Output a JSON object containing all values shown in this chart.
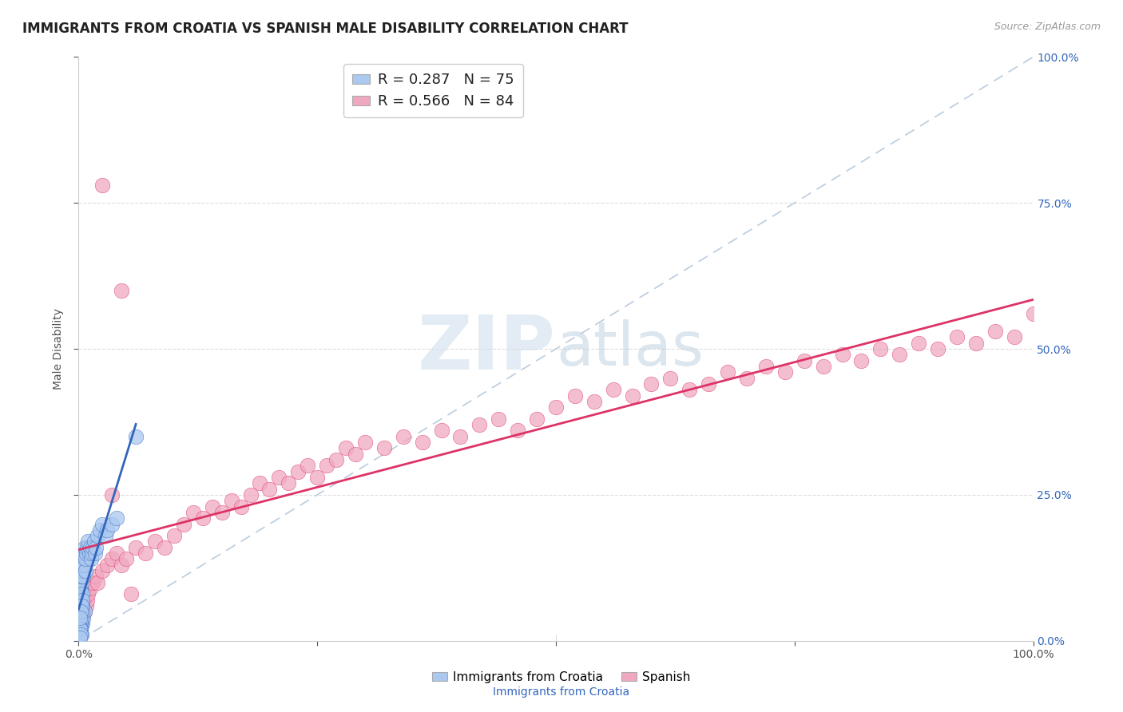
{
  "title": "IMMIGRANTS FROM CROATIA VS SPANISH MALE DISABILITY CORRELATION CHART",
  "source_text": "Source: ZipAtlas.com",
  "xlabel": "Immigrants from Croatia",
  "ylabel": "Male Disability",
  "xlim": [
    0.0,
    1.0
  ],
  "ylim": [
    0.0,
    1.0
  ],
  "legend_r1": "R = 0.287",
  "legend_n1": "N = 75",
  "legend_r2": "R = 0.566",
  "legend_n2": "N = 84",
  "color_croatia": "#aac8f0",
  "color_spanish": "#f0a8c0",
  "color_line_croatia": "#3366bb",
  "color_line_spanish": "#dd3366",
  "color_diagonal": "#bbccdd",
  "watermark_zip": "ZIP",
  "watermark_atlas": "atlas",
  "watermark_color_zip": "#d5e5f5",
  "watermark_color_atlas": "#c8d8e8",
  "background_color": "#ffffff",
  "croatia_x": [
    0.001,
    0.002,
    0.001,
    0.002,
    0.001,
    0.003,
    0.002,
    0.001,
    0.004,
    0.003,
    0.002,
    0.001,
    0.001,
    0.002,
    0.003,
    0.001,
    0.002,
    0.001,
    0.002,
    0.001,
    0.003,
    0.002,
    0.001,
    0.002,
    0.003,
    0.004,
    0.003,
    0.002,
    0.003,
    0.004,
    0.005,
    0.004,
    0.005,
    0.006,
    0.007,
    0.005,
    0.006,
    0.007,
    0.008,
    0.009,
    0.01,
    0.011,
    0.012,
    0.013,
    0.014,
    0.015,
    0.016,
    0.017,
    0.018,
    0.02,
    0.022,
    0.025,
    0.028,
    0.03,
    0.035,
    0.04,
    0.003,
    0.004,
    0.005,
    0.006,
    0.002,
    0.003,
    0.004,
    0.002,
    0.001,
    0.002,
    0.003,
    0.001,
    0.002,
    0.001,
    0.06,
    0.004,
    0.003,
    0.002,
    0.001
  ],
  "croatia_y": [
    0.02,
    0.03,
    0.04,
    0.05,
    0.01,
    0.03,
    0.02,
    0.06,
    0.03,
    0.04,
    0.05,
    0.03,
    0.02,
    0.04,
    0.05,
    0.07,
    0.06,
    0.08,
    0.07,
    0.09,
    0.08,
    0.07,
    0.1,
    0.09,
    0.1,
    0.08,
    0.11,
    0.12,
    0.13,
    0.12,
    0.11,
    0.13,
    0.14,
    0.13,
    0.12,
    0.15,
    0.16,
    0.14,
    0.15,
    0.16,
    0.17,
    0.15,
    0.16,
    0.14,
    0.15,
    0.16,
    0.17,
    0.15,
    0.16,
    0.18,
    0.19,
    0.2,
    0.18,
    0.19,
    0.2,
    0.21,
    0.05,
    0.06,
    0.04,
    0.05,
    0.03,
    0.04,
    0.05,
    0.02,
    0.01,
    0.02,
    0.01,
    0.02,
    0.01,
    0.005,
    0.35,
    0.07,
    0.06,
    0.05,
    0.04
  ],
  "spanish_x": [
    0.001,
    0.002,
    0.003,
    0.004,
    0.005,
    0.006,
    0.007,
    0.008,
    0.009,
    0.01,
    0.012,
    0.015,
    0.018,
    0.02,
    0.025,
    0.03,
    0.035,
    0.04,
    0.045,
    0.05,
    0.06,
    0.07,
    0.08,
    0.09,
    0.1,
    0.11,
    0.12,
    0.13,
    0.14,
    0.15,
    0.16,
    0.17,
    0.18,
    0.19,
    0.2,
    0.21,
    0.22,
    0.23,
    0.24,
    0.25,
    0.26,
    0.27,
    0.28,
    0.29,
    0.3,
    0.32,
    0.34,
    0.36,
    0.38,
    0.4,
    0.42,
    0.44,
    0.46,
    0.48,
    0.5,
    0.52,
    0.54,
    0.56,
    0.58,
    0.6,
    0.62,
    0.64,
    0.66,
    0.68,
    0.7,
    0.72,
    0.74,
    0.76,
    0.78,
    0.8,
    0.82,
    0.84,
    0.86,
    0.88,
    0.9,
    0.92,
    0.94,
    0.96,
    0.98,
    1.0,
    0.025,
    0.035,
    0.045,
    0.055
  ],
  "spanish_y": [
    0.03,
    0.05,
    0.04,
    0.06,
    0.07,
    0.05,
    0.08,
    0.06,
    0.07,
    0.08,
    0.09,
    0.1,
    0.11,
    0.1,
    0.12,
    0.13,
    0.14,
    0.15,
    0.13,
    0.14,
    0.16,
    0.15,
    0.17,
    0.16,
    0.18,
    0.2,
    0.22,
    0.21,
    0.23,
    0.22,
    0.24,
    0.23,
    0.25,
    0.27,
    0.26,
    0.28,
    0.27,
    0.29,
    0.3,
    0.28,
    0.3,
    0.31,
    0.33,
    0.32,
    0.34,
    0.33,
    0.35,
    0.34,
    0.36,
    0.35,
    0.37,
    0.38,
    0.36,
    0.38,
    0.4,
    0.42,
    0.41,
    0.43,
    0.42,
    0.44,
    0.45,
    0.43,
    0.44,
    0.46,
    0.45,
    0.47,
    0.46,
    0.48,
    0.47,
    0.49,
    0.48,
    0.5,
    0.49,
    0.51,
    0.5,
    0.52,
    0.51,
    0.53,
    0.52,
    0.56,
    0.78,
    0.25,
    0.6,
    0.08
  ],
  "grid_color": "#dddddd",
  "title_fontsize": 12,
  "axis_label_fontsize": 10,
  "tick_fontsize": 10,
  "legend_fontsize": 13
}
